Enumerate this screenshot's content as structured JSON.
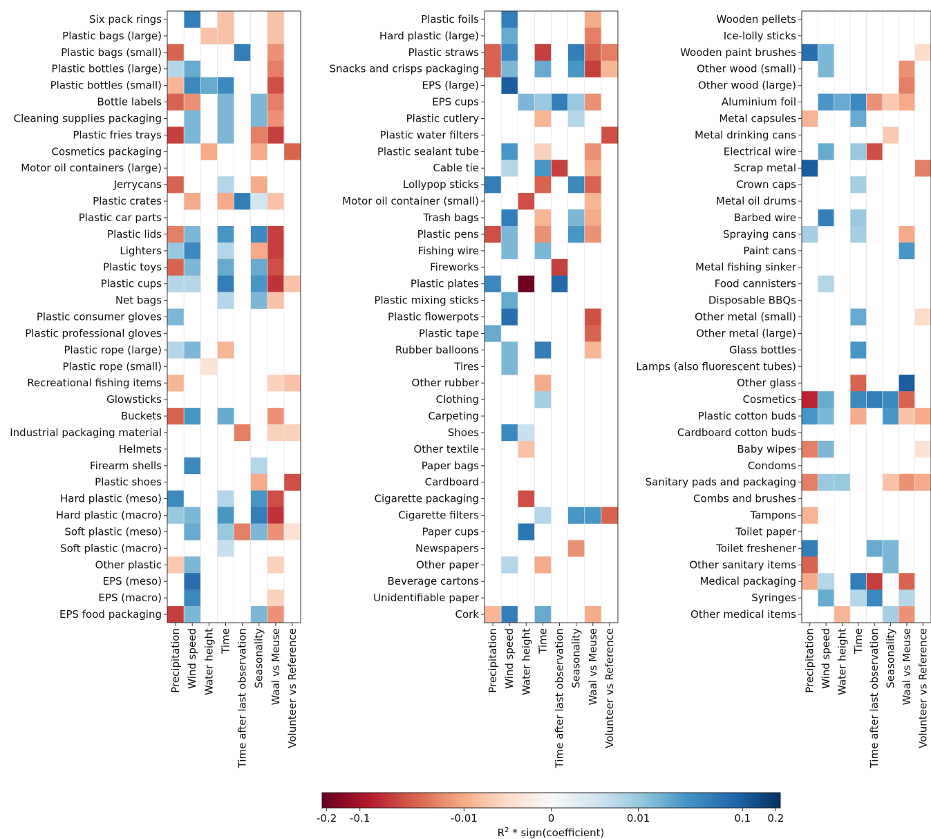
{
  "chart_data": [
    {
      "type": "heatmap",
      "columns": [
        "Precipitation",
        "Wind speed",
        "Water height",
        "Time",
        "Time after last observation",
        "Seasonality",
        "Waal vs Meuse",
        "Volunteer vs Reference"
      ],
      "rows": [
        "Six pack rings",
        "Plastic bags (large)",
        "Plastic bags (small)",
        "Plastic bottles (large)",
        "Plastic bottles (small)",
        "Bottle labels",
        "Cleaning supplies packaging",
        "Plastic fries trays",
        "Cosmetics packaging",
        "Motor oil containers (large)",
        "Jerrycans",
        "Plastic crates",
        "Plastic car parts",
        "Plastic lids",
        "Lighters",
        "Plastic toys",
        "Plastic cups",
        "Net bags",
        "Plastic consumer gloves",
        "Plastic professional gloves",
        "Plastic rope (large)",
        "Plastic rope (small)",
        "Recreational fishing items",
        "Glowsticks",
        "Buckets",
        "Industrial packaging material",
        "Helmets",
        "Firearm shells",
        "Plastic shoes",
        "Hard plastic (meso)",
        "Hard plastic (macro)",
        "Soft plastic (meso)",
        "Soft plastic (macro)",
        "Other plastic",
        "EPS (meso)",
        "EPS (macro)",
        "EPS food packaging"
      ],
      "values": [
        [
          0,
          0.05,
          0,
          -0.006,
          0,
          0,
          -0.006,
          0
        ],
        [
          0,
          0,
          -0.006,
          -0.006,
          0,
          0,
          -0.006,
          0
        ],
        [
          -0.03,
          0,
          0,
          0,
          0.05,
          0,
          -0.015,
          0
        ],
        [
          0.006,
          0.02,
          0,
          0,
          0,
          0,
          -0.02,
          0
        ],
        [
          -0.008,
          0.04,
          0.02,
          0.04,
          0,
          0,
          -0.04,
          0
        ],
        [
          -0.03,
          -0.015,
          0,
          0.015,
          0,
          0.015,
          -0.02,
          0
        ],
        [
          0,
          0.015,
          0,
          0.015,
          0,
          0.015,
          -0.015,
          0
        ],
        [
          -0.05,
          0.015,
          0,
          0.015,
          0,
          -0.02,
          -0.05,
          0
        ],
        [
          0,
          0,
          -0.01,
          0,
          0,
          -0.01,
          0,
          -0.03
        ],
        [
          0,
          0,
          0,
          0,
          0,
          0,
          0,
          0
        ],
        [
          -0.03,
          0,
          0,
          0.006,
          0,
          -0.01,
          0,
          0
        ],
        [
          0,
          -0.01,
          0,
          -0.01,
          0.05,
          0.003,
          -0.006,
          0
        ],
        [
          0,
          0,
          0,
          0,
          0,
          0,
          0,
          0
        ],
        [
          -0.02,
          0.015,
          0,
          0.03,
          0,
          0.04,
          -0.05,
          0
        ],
        [
          0.01,
          0.04,
          0,
          0.006,
          0,
          -0.01,
          -0.05,
          0
        ],
        [
          -0.03,
          0.015,
          0,
          0.02,
          0,
          0.02,
          -0.04,
          0
        ],
        [
          0.006,
          0.006,
          0,
          0.05,
          0,
          0.03,
          -0.06,
          -0.006
        ],
        [
          0,
          0,
          0,
          0.006,
          0,
          0.015,
          -0.006,
          0
        ],
        [
          0.015,
          0,
          0,
          0,
          0,
          0,
          0,
          0
        ],
        [
          0,
          0,
          0,
          0,
          0,
          0,
          0,
          0
        ],
        [
          0.006,
          0.015,
          0,
          -0.008,
          0,
          0,
          0,
          0
        ],
        [
          0,
          0,
          -0.002,
          0,
          0,
          0,
          0,
          0
        ],
        [
          -0.008,
          0,
          0,
          0,
          0,
          0,
          -0.004,
          -0.006
        ],
        [
          0,
          0,
          0,
          0,
          0,
          0,
          0,
          0
        ],
        [
          -0.03,
          0.03,
          0,
          0.02,
          0,
          0,
          -0.015,
          0
        ],
        [
          0,
          0,
          0,
          0,
          -0.02,
          0,
          -0.004,
          -0.004
        ],
        [
          0,
          0,
          0,
          0,
          0,
          0,
          0,
          0
        ],
        [
          0,
          0.04,
          0,
          0,
          0,
          0.006,
          0,
          0
        ],
        [
          0,
          0,
          0,
          0,
          0,
          -0.01,
          0,
          -0.04
        ],
        [
          0.04,
          0,
          0,
          0.006,
          0,
          0.03,
          -0.04,
          0
        ],
        [
          0.01,
          0.015,
          0,
          0.03,
          0,
          0.05,
          -0.06,
          0
        ],
        [
          0,
          0.02,
          0,
          0.01,
          -0.02,
          0.015,
          -0.015,
          -0.002
        ],
        [
          0,
          0,
          0,
          0.004,
          0,
          0,
          0,
          0
        ],
        [
          -0.005,
          0.015,
          0,
          0,
          0,
          0,
          -0.004,
          0
        ],
        [
          0,
          0.07,
          0,
          0,
          0,
          0,
          0,
          0
        ],
        [
          0,
          0.04,
          0,
          0,
          0,
          0,
          -0.004,
          0
        ],
        [
          -0.05,
          0.015,
          0,
          0,
          0,
          0.015,
          -0.015,
          0
        ]
      ],
      "xlim": [
        0,
        8
      ],
      "ylim": [
        0,
        37
      ]
    },
    {
      "type": "heatmap",
      "columns": [
        "Precipitation",
        "Wind speed",
        "Water height",
        "Time",
        "Time after last observation",
        "Seasonality",
        "Waal vs Meuse",
        "Volunteer vs Reference"
      ],
      "rows": [
        "Plastic foils",
        "Hard plastic (large)",
        "Plastic straws",
        "Snacks and crisps packaging",
        "EPS (large)",
        "EPS cups",
        "Plastic cutlery",
        "Plastic water filters",
        "Plastic sealant tube",
        "Cable tie",
        "Lollypop sticks",
        "Motor oil container (small)",
        "Trash bags",
        "Plastic pens",
        "Fishing wire",
        "Fireworks",
        "Plastic plates",
        "Plastic mixing sticks",
        "Plastic flowerpots",
        "Plastic tape",
        "Rubber balloons",
        "Tires",
        "Other rubber",
        "Clothing",
        "Carpeting",
        "Shoes",
        "Other textile",
        "Paper bags",
        "Cardboard",
        "Cigarette packaging",
        "Cigarette filters",
        "Paper cups",
        "Newspapers",
        "Other paper",
        "Beverage cartons",
        "Unidentifiable paper",
        "Cork"
      ],
      "values": [
        [
          0,
          0.05,
          0,
          0,
          0,
          0,
          -0.01,
          0
        ],
        [
          0,
          0.02,
          0,
          0,
          0,
          0,
          -0.02,
          0
        ],
        [
          -0.03,
          0.04,
          0,
          -0.05,
          0,
          0.05,
          -0.03,
          -0.02
        ],
        [
          -0.03,
          0.015,
          0,
          0.02,
          0,
          0.03,
          -0.05,
          -0.008
        ],
        [
          0,
          0.1,
          0,
          0,
          0,
          0,
          0,
          0
        ],
        [
          0,
          0,
          0.015,
          0.01,
          0.05,
          0.01,
          -0.015,
          0
        ],
        [
          0,
          0,
          0,
          -0.008,
          0,
          0.006,
          0,
          0
        ],
        [
          0,
          0,
          0,
          0,
          0,
          0,
          0,
          -0.04
        ],
        [
          0,
          0.03,
          0,
          -0.004,
          0,
          0,
          -0.015,
          0
        ],
        [
          0,
          0.006,
          0,
          0.03,
          -0.05,
          0,
          -0.01,
          0
        ],
        [
          0.05,
          0,
          0,
          -0.03,
          0,
          0.04,
          -0.03,
          0
        ],
        [
          0,
          0,
          -0.04,
          0,
          0,
          0,
          -0.008,
          0
        ],
        [
          0,
          0.05,
          0,
          -0.008,
          0,
          0.015,
          -0.01,
          0
        ],
        [
          -0.04,
          0.015,
          0,
          -0.015,
          0,
          0.03,
          -0.015,
          0
        ],
        [
          0,
          0.015,
          0,
          0.015,
          0,
          0,
          0,
          0
        ],
        [
          0,
          0,
          0,
          0,
          -0.05,
          0,
          0,
          0
        ],
        [
          0.04,
          0,
          -0.2,
          0,
          0.08,
          0,
          0,
          0
        ],
        [
          0,
          0.02,
          0,
          0,
          0,
          0,
          0,
          0
        ],
        [
          0,
          0.07,
          0,
          0,
          0,
          0,
          -0.04,
          0
        ],
        [
          0.02,
          0,
          0,
          0,
          0,
          0,
          -0.03,
          0
        ],
        [
          0,
          0.015,
          0,
          0.05,
          0,
          0,
          -0.008,
          0
        ],
        [
          0,
          0.015,
          0,
          0,
          0,
          0,
          0,
          0
        ],
        [
          0,
          0,
          0,
          -0.01,
          0,
          0,
          0,
          0
        ],
        [
          0,
          0,
          0,
          0.008,
          0,
          0,
          0,
          0
        ],
        [
          0,
          0,
          0,
          0,
          0,
          0,
          0,
          0
        ],
        [
          0,
          0.04,
          0.004,
          0,
          0,
          0,
          0,
          0
        ],
        [
          0,
          0,
          -0.006,
          0,
          0,
          0,
          0,
          0
        ],
        [
          0,
          0,
          0,
          0,
          0,
          0,
          0,
          0
        ],
        [
          0,
          0,
          0,
          0,
          0,
          0,
          0,
          0
        ],
        [
          0,
          0,
          -0.04,
          0,
          0,
          0,
          0,
          0
        ],
        [
          0,
          0,
          0,
          0.006,
          0,
          0.03,
          0.03,
          -0.03
        ],
        [
          0,
          0,
          0.06,
          0,
          0,
          0,
          0,
          0
        ],
        [
          0,
          0,
          0,
          0,
          0,
          -0.015,
          0,
          0
        ],
        [
          0,
          0.006,
          0,
          -0.01,
          0,
          0,
          0,
          0
        ],
        [
          0,
          0,
          0,
          0,
          0,
          0,
          0,
          0
        ],
        [
          0,
          0,
          0,
          0,
          0,
          0,
          0,
          0
        ],
        [
          -0.008,
          0.05,
          0,
          0.02,
          0,
          0,
          -0.01,
          0
        ]
      ],
      "xlim": [
        0,
        8
      ],
      "ylim": [
        0,
        37
      ]
    },
    {
      "type": "heatmap",
      "columns": [
        "Precipitation",
        "Wind speed",
        "Water height",
        "Time",
        "Time after last observation",
        "Seasonality",
        "Waal vs Meuse",
        "Volunteer vs Reference"
      ],
      "rows": [
        "Wooden pellets",
        "Ice-lolly sticks",
        "Wooden paint brushes",
        "Other wood (small)",
        "Other wood (large)",
        "Aluminium foil",
        "Metal capsules",
        "Metal drinking cans",
        "Electrical wire",
        "Scrap metal",
        "Crown caps",
        "Metal oil drums",
        "Barbed wire",
        "Spraying cans",
        "Paint cans",
        "Metal fishing sinker",
        "Food cannisters",
        "Disposable BBQs",
        "Other metal (small)",
        "Other metal (large)",
        "Glass bottles",
        "Lamps (also fluorescent tubes)",
        "Other glass",
        "Cosmetics",
        "Plastic cotton buds",
        "Cardboard cotton buds",
        "Baby wipes",
        "Condoms",
        "Sanitary pads and packaging",
        "Combs and brushes",
        "Tampons",
        "Toilet paper",
        "Toilet freshener",
        "Other sanitary items",
        "Medical packaging",
        "Syringes",
        "Other medical items"
      ],
      "values": [
        [
          0,
          0,
          0,
          0,
          0,
          0,
          0,
          0
        ],
        [
          0,
          0,
          0,
          0,
          0,
          0,
          0,
          0
        ],
        [
          0.07,
          0.015,
          0,
          0,
          0,
          0,
          0,
          -0.003
        ],
        [
          0,
          0.015,
          0,
          0,
          0,
          0,
          -0.015,
          0
        ],
        [
          0,
          0,
          0,
          0,
          0,
          0,
          -0.02,
          0
        ],
        [
          0,
          0.03,
          0.02,
          0.04,
          -0.015,
          -0.005,
          -0.01,
          0
        ],
        [
          -0.008,
          0,
          0,
          0.02,
          0,
          0,
          0,
          0
        ],
        [
          0,
          0,
          0,
          0,
          0,
          -0.005,
          0,
          0
        ],
        [
          0,
          0.02,
          0,
          0.01,
          -0.04,
          0,
          0,
          0
        ],
        [
          0.1,
          0,
          0,
          0,
          0,
          0,
          0,
          -0.02
        ],
        [
          0,
          0,
          0,
          0.008,
          0,
          0,
          0,
          0
        ],
        [
          0,
          0,
          0,
          0,
          0,
          0,
          0,
          0
        ],
        [
          0,
          0.05,
          0,
          0.01,
          0,
          0,
          0,
          0
        ],
        [
          0.008,
          0,
          0,
          0.008,
          0,
          0,
          -0.01,
          0
        ],
        [
          0,
          0,
          0,
          0,
          0,
          0,
          0.03,
          0
        ],
        [
          0,
          0,
          0,
          0,
          0,
          0,
          0,
          0
        ],
        [
          0,
          0.006,
          0,
          0,
          0,
          0,
          0,
          0
        ],
        [
          0,
          0,
          0,
          0,
          0,
          0,
          0,
          0
        ],
        [
          0,
          0,
          0,
          0.02,
          0,
          0,
          0,
          -0.003
        ],
        [
          0,
          0,
          0,
          0,
          0,
          0,
          0,
          0
        ],
        [
          0,
          0,
          0,
          0.03,
          0,
          0,
          0,
          0
        ],
        [
          0,
          0,
          0,
          0,
          0,
          0,
          0,
          0
        ],
        [
          0,
          0,
          0,
          -0.03,
          0,
          0,
          0.1,
          0
        ],
        [
          -0.07,
          0.02,
          0,
          0.04,
          0.05,
          0.04,
          -0.03,
          0
        ],
        [
          0.03,
          0.015,
          0,
          -0.01,
          0,
          0.03,
          -0.006,
          -0.01
        ],
        [
          0,
          0,
          0,
          0,
          0,
          0,
          0,
          0
        ],
        [
          -0.02,
          0.015,
          0,
          0,
          0,
          0,
          0,
          -0.002
        ],
        [
          0,
          0,
          0,
          0,
          0,
          0,
          0,
          0
        ],
        [
          -0.02,
          0.01,
          0.01,
          0,
          0,
          -0.006,
          -0.015,
          -0.01
        ],
        [
          0,
          0,
          0,
          0,
          0,
          0,
          0,
          0
        ],
        [
          -0.008,
          0,
          0,
          0,
          0,
          0,
          0,
          0
        ],
        [
          0,
          0,
          0,
          0,
          0,
          0,
          0,
          0
        ],
        [
          0.05,
          0,
          0,
          0,
          0.02,
          0.015,
          0,
          0
        ],
        [
          -0.03,
          0,
          0,
          0,
          0,
          0.015,
          0,
          0
        ],
        [
          -0.01,
          0.006,
          0,
          0.05,
          -0.05,
          0,
          -0.03,
          0
        ],
        [
          0,
          0.02,
          0,
          0.006,
          0.04,
          0,
          0.006,
          0
        ],
        [
          0,
          0,
          -0.008,
          0,
          0,
          0.008,
          -0.015,
          0
        ]
      ],
      "xlim": [
        0,
        8
      ],
      "ylim": [
        0,
        37
      ]
    }
  ],
  "colorbar": {
    "label_prefix": "R",
    "label_superscript": "2",
    "label_suffix": " * sign(coefficient)",
    "ticks": [
      {
        "value": -0.2,
        "label": "-0.2"
      },
      {
        "value": -0.1,
        "label": "-0.1"
      },
      {
        "value": -0.01,
        "label": "-0.01"
      },
      {
        "value": 0,
        "label": "0"
      },
      {
        "value": 0.01,
        "label": "0.01"
      },
      {
        "value": 0.1,
        "label": "0.1"
      },
      {
        "value": 0.2,
        "label": "0.2"
      }
    ],
    "range": [
      -0.22,
      0.22
    ],
    "colormap": "RdBu",
    "colors": [
      "#67001f",
      "#b2182b",
      "#d6604d",
      "#f4a582",
      "#fddbc7",
      "#f7f7f7",
      "#d1e5f0",
      "#92c5de",
      "#4393c3",
      "#2166ac",
      "#053061"
    ]
  }
}
